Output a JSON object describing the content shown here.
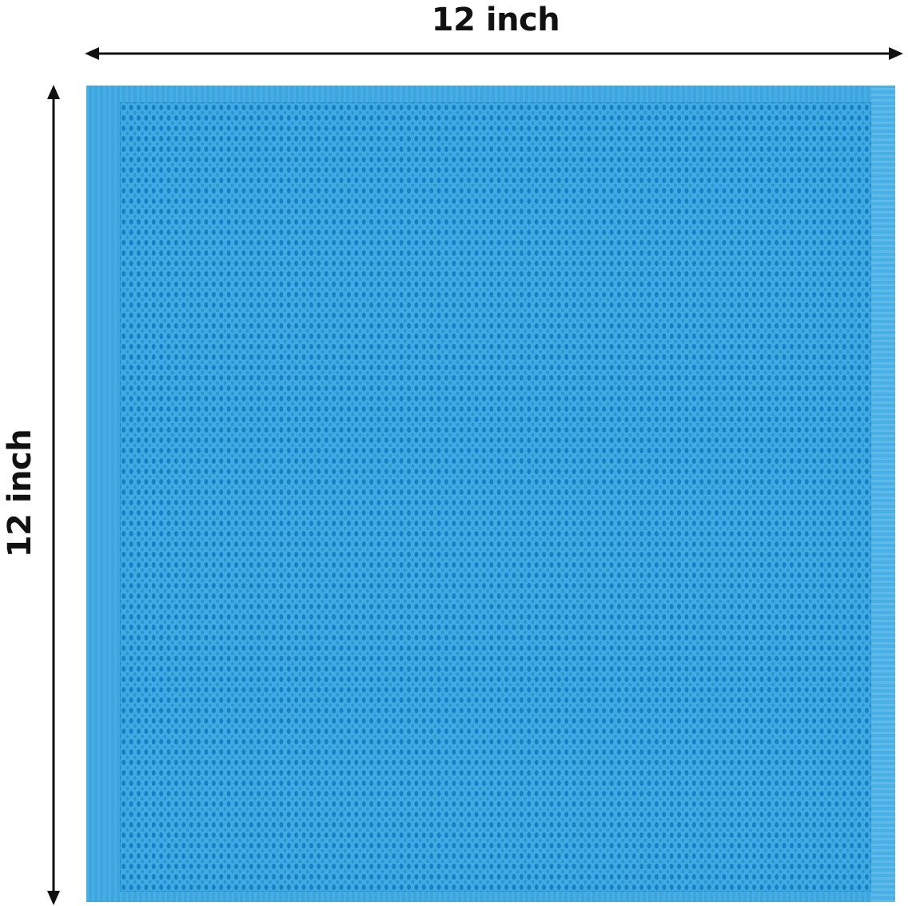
{
  "dimensions": {
    "width_label": "12 inch",
    "height_label": "12 inch"
  },
  "product": {
    "name_icon": "waffle-weave-towel",
    "color": "#3ba6df"
  }
}
